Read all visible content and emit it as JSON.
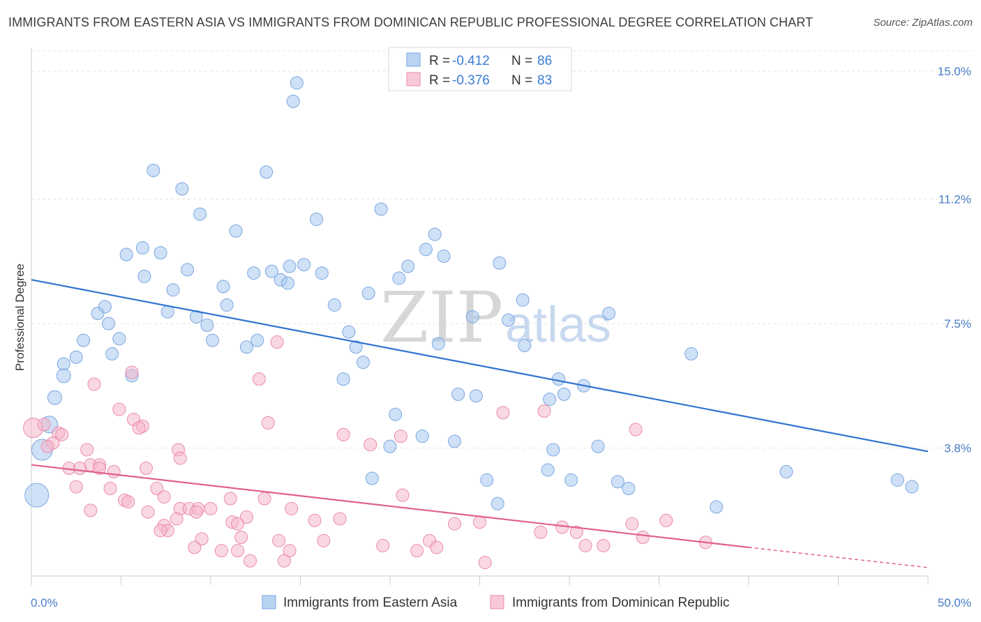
{
  "title": "IMMIGRANTS FROM EASTERN ASIA VS IMMIGRANTS FROM DOMINICAN REPUBLIC PROFESSIONAL DEGREE CORRELATION CHART",
  "source": "Source: ZipAtlas.com",
  "watermark": {
    "zip": "ZIP",
    "atlas": "atlas"
  },
  "chart_data": {
    "type": "scatter",
    "xlabel": "",
    "ylabel": "Professional Degree",
    "xlim": [
      0,
      50
    ],
    "ylim": [
      0,
      15.6
    ],
    "y_ticks": [
      3.8,
      7.5,
      11.2,
      15.0
    ],
    "y_tick_labels": [
      "3.8%",
      "7.5%",
      "11.2%",
      "15.0%"
    ],
    "x_tick_labels": [
      "0.0%",
      "50.0%"
    ],
    "grid": true,
    "legend_position": "top-center",
    "legend": [
      {
        "r_label": "R =",
        "r_value": "-0.412",
        "n_label": "N =",
        "n_value": "86"
      },
      {
        "r_label": "R =",
        "r_value": "-0.376",
        "n_label": "N =",
        "n_value": "83"
      }
    ],
    "series": [
      {
        "name": "Immigrants from Eastern Asia",
        "color": "#a8c8ef",
        "stroke": "#7aa6e0",
        "trend_color": "#2f73d0",
        "trend": {
          "x0": 0,
          "y0": 8.8,
          "x1": 50,
          "y1": 3.7
        },
        "points": [
          [
            14.8,
            14.65
          ],
          [
            14.6,
            14.1
          ],
          [
            6.8,
            12.05
          ],
          [
            13.1,
            12.0
          ],
          [
            8.4,
            11.5
          ],
          [
            9.4,
            10.75
          ],
          [
            15.9,
            10.6
          ],
          [
            19.5,
            10.9
          ],
          [
            11.4,
            10.25
          ],
          [
            22.5,
            10.15
          ],
          [
            6.2,
            9.75
          ],
          [
            7.2,
            9.6
          ],
          [
            5.3,
            9.55
          ],
          [
            22.0,
            9.7
          ],
          [
            23.0,
            9.5
          ],
          [
            15.2,
            9.25
          ],
          [
            14.4,
            9.2
          ],
          [
            8.7,
            9.1
          ],
          [
            12.4,
            9.0
          ],
          [
            13.4,
            9.05
          ],
          [
            16.2,
            9.0
          ],
          [
            6.3,
            8.9
          ],
          [
            21.0,
            9.2
          ],
          [
            20.5,
            8.85
          ],
          [
            26.1,
            9.3
          ],
          [
            13.9,
            8.8
          ],
          [
            14.3,
            8.7
          ],
          [
            7.9,
            8.5
          ],
          [
            10.7,
            8.6
          ],
          [
            18.8,
            8.4
          ],
          [
            27.4,
            8.2
          ],
          [
            4.1,
            8.0
          ],
          [
            3.7,
            7.8
          ],
          [
            7.6,
            7.85
          ],
          [
            10.9,
            8.05
          ],
          [
            16.9,
            8.05
          ],
          [
            9.2,
            7.7
          ],
          [
            24.6,
            7.7
          ],
          [
            26.6,
            7.6
          ],
          [
            32.2,
            7.8
          ],
          [
            4.3,
            7.5
          ],
          [
            9.8,
            7.45
          ],
          [
            17.7,
            7.25
          ],
          [
            4.9,
            7.05
          ],
          [
            2.9,
            7.0
          ],
          [
            10.1,
            7.0
          ],
          [
            12.6,
            7.0
          ],
          [
            12.0,
            6.8
          ],
          [
            18.1,
            6.8
          ],
          [
            22.7,
            6.9
          ],
          [
            27.5,
            6.85
          ],
          [
            36.8,
            6.6
          ],
          [
            4.5,
            6.6
          ],
          [
            2.5,
            6.5
          ],
          [
            1.8,
            6.3
          ],
          [
            18.5,
            6.35
          ],
          [
            1.8,
            5.95
          ],
          [
            5.6,
            5.95
          ],
          [
            17.4,
            5.85
          ],
          [
            29.4,
            5.85
          ],
          [
            30.8,
            5.65
          ],
          [
            1.3,
            5.3
          ],
          [
            23.8,
            5.4
          ],
          [
            24.8,
            5.35
          ],
          [
            29.7,
            5.4
          ],
          [
            28.9,
            5.25
          ],
          [
            20.3,
            4.8
          ],
          [
            1.0,
            4.5
          ],
          [
            21.8,
            4.15
          ],
          [
            23.6,
            4.0
          ],
          [
            20.0,
            3.85
          ],
          [
            31.6,
            3.85
          ],
          [
            29.1,
            3.75
          ],
          [
            0.6,
            3.75
          ],
          [
            25.4,
            2.85
          ],
          [
            19.0,
            2.9
          ],
          [
            28.8,
            3.15
          ],
          [
            30.1,
            2.85
          ],
          [
            32.7,
            2.8
          ],
          [
            33.3,
            2.6
          ],
          [
            42.1,
            3.1
          ],
          [
            48.3,
            2.85
          ],
          [
            49.1,
            2.65
          ],
          [
            26.0,
            2.15
          ],
          [
            38.2,
            2.05
          ],
          [
            0.3,
            2.4
          ]
        ],
        "radii": [
          9,
          9,
          9,
          9,
          9,
          9,
          9,
          9,
          9,
          9,
          9,
          9,
          9,
          9,
          9,
          9,
          9,
          9,
          9,
          9,
          9,
          9,
          9,
          9,
          9,
          9,
          9,
          9,
          9,
          9,
          9,
          9,
          9,
          9,
          9,
          9,
          9,
          9,
          9,
          9,
          9,
          9,
          9,
          9,
          9,
          9,
          9,
          9,
          9,
          9,
          9,
          9,
          9,
          9,
          9,
          9,
          10,
          9,
          9,
          9,
          9,
          10,
          9,
          9,
          9,
          9,
          9,
          12,
          9,
          9,
          9,
          9,
          9,
          15,
          9,
          9,
          9,
          9,
          9,
          9,
          9,
          9,
          9,
          9,
          9,
          17
        ]
      },
      {
        "name": "Immigrants from Dominican Republic",
        "color": "#f5b8cb",
        "stroke": "#e98aaa",
        "trend_color": "#e0608e",
        "trend": {
          "x0": 0,
          "y0": 3.3,
          "x1": 40,
          "y1": 0.85
        },
        "trend_dashed": {
          "x0": 40,
          "y0": 0.85,
          "x1": 50,
          "y1": 0.25
        },
        "points": [
          [
            13.7,
            6.95
          ],
          [
            5.6,
            6.05
          ],
          [
            12.7,
            5.85
          ],
          [
            3.5,
            5.7
          ],
          [
            4.9,
            4.95
          ],
          [
            28.6,
            4.9
          ],
          [
            26.3,
            4.85
          ],
          [
            5.7,
            4.65
          ],
          [
            6.2,
            4.45
          ],
          [
            13.2,
            4.55
          ],
          [
            6.0,
            4.4
          ],
          [
            33.7,
            4.35
          ],
          [
            0.1,
            4.4
          ],
          [
            0.7,
            4.5
          ],
          [
            1.5,
            4.25
          ],
          [
            1.7,
            4.2
          ],
          [
            17.4,
            4.2
          ],
          [
            20.6,
            4.15
          ],
          [
            1.2,
            3.95
          ],
          [
            0.9,
            3.85
          ],
          [
            3.1,
            3.75
          ],
          [
            8.2,
            3.75
          ],
          [
            18.9,
            3.9
          ],
          [
            8.3,
            3.5
          ],
          [
            3.3,
            3.3
          ],
          [
            3.8,
            3.3
          ],
          [
            2.1,
            3.2
          ],
          [
            2.7,
            3.2
          ],
          [
            3.8,
            3.2
          ],
          [
            4.6,
            3.1
          ],
          [
            6.4,
            3.2
          ],
          [
            2.5,
            2.65
          ],
          [
            7.0,
            2.6
          ],
          [
            4.4,
            2.6
          ],
          [
            7.4,
            2.35
          ],
          [
            13.0,
            2.3
          ],
          [
            11.1,
            2.3
          ],
          [
            20.7,
            2.4
          ],
          [
            5.2,
            2.25
          ],
          [
            5.4,
            2.2
          ],
          [
            8.3,
            2.0
          ],
          [
            8.8,
            2.0
          ],
          [
            9.3,
            2.0
          ],
          [
            10.0,
            2.0
          ],
          [
            14.5,
            2.0
          ],
          [
            3.3,
            1.95
          ],
          [
            6.5,
            1.9
          ],
          [
            9.2,
            1.9
          ],
          [
            15.8,
            1.65
          ],
          [
            17.2,
            1.7
          ],
          [
            8.1,
            1.7
          ],
          [
            12.0,
            1.75
          ],
          [
            11.2,
            1.6
          ],
          [
            11.5,
            1.55
          ],
          [
            23.6,
            1.55
          ],
          [
            25.0,
            1.6
          ],
          [
            33.5,
            1.55
          ],
          [
            35.4,
            1.65
          ],
          [
            28.4,
            1.3
          ],
          [
            7.4,
            1.5
          ],
          [
            7.6,
            1.35
          ],
          [
            7.2,
            1.35
          ],
          [
            30.4,
            1.3
          ],
          [
            29.6,
            1.45
          ],
          [
            34.1,
            1.15
          ],
          [
            11.7,
            1.15
          ],
          [
            9.5,
            1.1
          ],
          [
            13.8,
            1.05
          ],
          [
            16.3,
            1.05
          ],
          [
            22.2,
            1.05
          ],
          [
            37.6,
            1.0
          ],
          [
            9.1,
            0.85
          ],
          [
            19.6,
            0.9
          ],
          [
            22.6,
            0.85
          ],
          [
            31.9,
            0.9
          ],
          [
            30.9,
            0.9
          ],
          [
            10.6,
            0.75
          ],
          [
            11.5,
            0.75
          ],
          [
            14.4,
            0.75
          ],
          [
            21.5,
            0.75
          ],
          [
            12.2,
            0.45
          ],
          [
            14.1,
            0.45
          ],
          [
            25.3,
            0.4
          ]
        ],
        "radii": [
          9,
          9,
          9,
          9,
          9,
          9,
          9,
          9,
          9,
          9,
          9,
          9,
          14,
          9,
          9,
          9,
          9,
          9,
          9,
          9,
          9,
          9,
          9,
          9,
          9,
          9,
          9,
          9,
          9,
          9,
          9,
          9,
          9,
          9,
          9,
          9,
          9,
          9,
          9,
          9,
          9,
          9,
          9,
          9,
          9,
          9,
          9,
          9,
          9,
          9,
          9,
          9,
          9,
          9,
          9,
          9,
          9,
          9,
          9,
          9,
          9,
          9,
          9,
          9,
          9,
          9,
          9,
          9,
          9,
          9,
          9,
          9,
          9,
          9,
          9,
          9,
          9,
          9,
          9,
          9,
          9,
          9,
          9
        ]
      }
    ]
  }
}
